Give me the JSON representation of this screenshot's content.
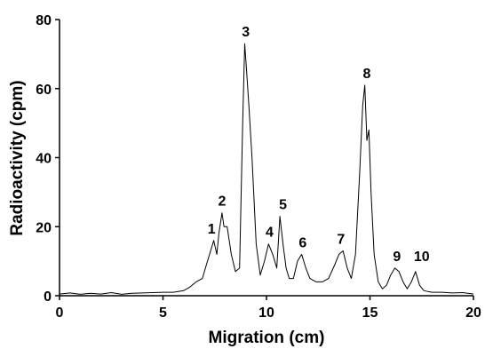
{
  "chart_data": {
    "type": "line",
    "xlabel": "Migration (cm)",
    "ylabel": "Radioactivity (cpm)",
    "xlim": [
      0,
      20
    ],
    "ylim": [
      0,
      80
    ],
    "xticks": [
      0,
      5,
      10,
      15,
      20
    ],
    "yticks": [
      0,
      20,
      40,
      60,
      80
    ],
    "grid": false,
    "line_color": "#000000",
    "series": [
      {
        "x": [
          0,
          0.5,
          1,
          1.5,
          2,
          2.5,
          3,
          3.5,
          4,
          4.5,
          5,
          5.5,
          6,
          6.3,
          6.6,
          6.9,
          7.1,
          7.3,
          7.45,
          7.6,
          7.7,
          7.85,
          7.95,
          8.1,
          8.3,
          8.5,
          8.7,
          8.85,
          8.95,
          9.05,
          9.15,
          9.3,
          9.5,
          9.7,
          9.9,
          10.1,
          10.3,
          10.5,
          10.65,
          10.8,
          10.95,
          11.1,
          11.3,
          11.5,
          11.7,
          11.9,
          12.1,
          12.4,
          12.7,
          13,
          13.3,
          13.5,
          13.7,
          13.9,
          14.1,
          14.3,
          14.5,
          14.65,
          14.75,
          14.85,
          14.95,
          15.05,
          15.2,
          15.4,
          15.6,
          15.8,
          16,
          16.2,
          16.4,
          16.6,
          16.8,
          17,
          17.2,
          17.4,
          17.6,
          17.8,
          18,
          18.5,
          19,
          19.5,
          20
        ],
        "y": [
          0.5,
          0.8,
          0.4,
          0.7,
          0.5,
          0.9,
          0.4,
          0.7,
          0.8,
          0.9,
          1,
          1,
          1.5,
          2.5,
          4,
          5,
          9,
          13,
          16,
          12,
          18,
          24,
          20,
          20,
          12,
          7,
          8,
          50,
          73,
          64,
          55,
          40,
          15,
          6,
          10,
          15,
          12,
          8,
          23,
          15,
          8,
          5,
          5,
          10,
          12,
          8,
          5,
          4,
          4,
          5,
          9,
          12,
          13,
          8,
          5,
          12,
          35,
          55,
          61,
          45,
          48,
          30,
          12,
          4,
          2,
          3,
          6,
          8,
          7,
          4,
          2,
          4,
          7,
          3,
          1.5,
          1.2,
          1,
          1,
          0.8,
          0.9,
          0.5
        ]
      }
    ],
    "annotations": [
      {
        "text": "1",
        "x": 7.35,
        "y": 16
      },
      {
        "text": "2",
        "x": 7.85,
        "y": 24
      },
      {
        "text": "3",
        "x": 9.0,
        "y": 73
      },
      {
        "text": "4",
        "x": 10.15,
        "y": 15
      },
      {
        "text": "5",
        "x": 10.8,
        "y": 23
      },
      {
        "text": "6",
        "x": 11.75,
        "y": 12
      },
      {
        "text": "7",
        "x": 13.6,
        "y": 13
      },
      {
        "text": "8",
        "x": 14.85,
        "y": 61
      },
      {
        "text": "9",
        "x": 16.3,
        "y": 8
      },
      {
        "text": "10",
        "x": 17.5,
        "y": 8
      }
    ]
  }
}
